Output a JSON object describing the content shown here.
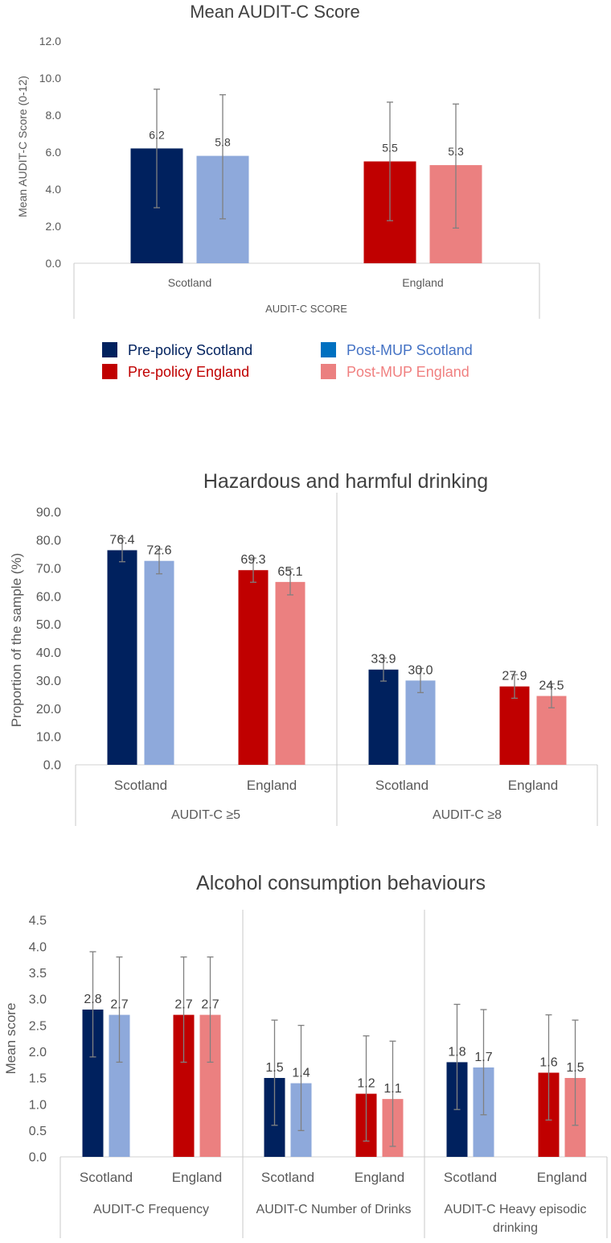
{
  "colors": {
    "pre_scotland": "#00215E",
    "post_scotland": "#8EA9DB",
    "pre_england": "#C00000",
    "post_england": "#EB8080",
    "legend_post_scotland_swatch": "#0070C0",
    "legend_post_scotland_text": "#4472C4",
    "legend_post_england_text": "#F08080",
    "error_bar": "#808080",
    "axis_text": "#595959",
    "title_text": "#404040"
  },
  "legend": {
    "pre_scotland": "Pre-policy Scotland",
    "post_scotland": "Post-MUP Scotland",
    "pre_england": "Pre-policy England",
    "post_england": "Post-MUP England"
  },
  "chart_data": [
    {
      "type": "bar",
      "title": "Mean AUDIT-C Score",
      "ylabel": "Mean AUDIT-C Score (0-12)",
      "ylim": [
        0,
        12
      ],
      "yticks": [
        "0.0",
        "2.0",
        "4.0",
        "6.0",
        "8.0",
        "10.0",
        "12.0"
      ],
      "groups": [
        {
          "label": "AUDIT-C SCORE",
          "countries": [
            {
              "label": "Scotland",
              "bars": [
                {
                  "series": "Pre-policy Scotland",
                  "value": 6.2,
                  "label": "6.2",
                  "err_low": 3.0,
                  "err_high": 9.4
                },
                {
                  "series": "Post-MUP Scotland",
                  "value": 5.8,
                  "label": "5.8",
                  "err_low": 2.4,
                  "err_high": 9.1
                }
              ]
            },
            {
              "label": "England",
              "bars": [
                {
                  "series": "Pre-policy England",
                  "value": 5.5,
                  "label": "5.5",
                  "err_low": 2.3,
                  "err_high": 8.7
                },
                {
                  "series": "Post-MUP England",
                  "value": 5.3,
                  "label": "5.3",
                  "err_low": 1.9,
                  "err_high": 8.6
                }
              ]
            }
          ]
        }
      ]
    },
    {
      "type": "bar",
      "title": "Hazardous and harmful drinking",
      "ylabel": "Proportion of the sample (%)",
      "ylim": [
        0,
        90
      ],
      "yticks": [
        "0.0",
        "10.0",
        "20.0",
        "30.0",
        "40.0",
        "50.0",
        "60.0",
        "70.0",
        "80.0",
        "90.0"
      ],
      "groups": [
        {
          "label": "AUDIT-C ≥5",
          "countries": [
            {
              "label": "Scotland",
              "bars": [
                {
                  "series": "Pre-policy Scotland",
                  "value": 76.4,
                  "label": "76.4",
                  "err_low": 72.3,
                  "err_high": 80.8
                },
                {
                  "series": "Post-MUP Scotland",
                  "value": 72.6,
                  "label": "72.6",
                  "err_low": 68.0,
                  "err_high": 76.8
                }
              ]
            },
            {
              "label": "England",
              "bars": [
                {
                  "series": "Pre-policy England",
                  "value": 69.3,
                  "label": "69.3",
                  "err_low": 65.0,
                  "err_high": 73.6
                },
                {
                  "series": "Post-MUP England",
                  "value": 65.1,
                  "label": "65.1",
                  "err_low": 60.5,
                  "err_high": 69.7
                }
              ]
            }
          ]
        },
        {
          "label": "AUDIT-C ≥8",
          "countries": [
            {
              "label": "Scotland",
              "bars": [
                {
                  "series": "Pre-policy Scotland",
                  "value": 33.9,
                  "label": "33.9",
                  "err_low": 29.8,
                  "err_high": 38.0
                },
                {
                  "series": "Post-MUP Scotland",
                  "value": 30.0,
                  "label": "30.0",
                  "err_low": 25.7,
                  "err_high": 34.3
                }
              ]
            },
            {
              "label": "England",
              "bars": [
                {
                  "series": "Pre-policy England",
                  "value": 27.9,
                  "label": "27.9",
                  "err_low": 23.7,
                  "err_high": 32.1
                },
                {
                  "series": "Post-MUP England",
                  "value": 24.5,
                  "label": "24.5",
                  "err_low": 20.3,
                  "err_high": 28.8
                }
              ]
            }
          ]
        }
      ]
    },
    {
      "type": "bar",
      "title": "Alcohol consumption behaviours",
      "ylabel": "Mean score",
      "ylim": [
        0,
        4.5
      ],
      "yticks": [
        "0.0",
        "0.5",
        "1.0",
        "1.5",
        "2.0",
        "2.5",
        "3.0",
        "3.5",
        "4.0",
        "4.5"
      ],
      "groups": [
        {
          "label": "AUDIT-C Frequency",
          "countries": [
            {
              "label": "Scotland",
              "bars": [
                {
                  "series": "Pre-policy Scotland",
                  "value": 2.8,
                  "label": "2.8",
                  "err_low": 1.9,
                  "err_high": 3.9
                },
                {
                  "series": "Post-MUP Scotland",
                  "value": 2.7,
                  "label": "2.7",
                  "err_low": 1.8,
                  "err_high": 3.8
                }
              ]
            },
            {
              "label": "England",
              "bars": [
                {
                  "series": "Pre-policy England",
                  "value": 2.7,
                  "label": "2.7",
                  "err_low": 1.8,
                  "err_high": 3.8
                },
                {
                  "series": "Post-MUP England",
                  "value": 2.7,
                  "label": "2.7",
                  "err_low": 1.8,
                  "err_high": 3.8
                }
              ]
            }
          ]
        },
        {
          "label": "AUDIT-C Number of Drinks",
          "countries": [
            {
              "label": "Scotland",
              "bars": [
                {
                  "series": "Pre-policy Scotland",
                  "value": 1.5,
                  "label": "1.5",
                  "err_low": 0.6,
                  "err_high": 2.6
                },
                {
                  "series": "Post-MUP Scotland",
                  "value": 1.4,
                  "label": "1.4",
                  "err_low": 0.5,
                  "err_high": 2.5
                }
              ]
            },
            {
              "label": "England",
              "bars": [
                {
                  "series": "Pre-policy England",
                  "value": 1.2,
                  "label": "1.2",
                  "err_low": 0.3,
                  "err_high": 2.3
                },
                {
                  "series": "Post-MUP England",
                  "value": 1.1,
                  "label": "1.1",
                  "err_low": 0.2,
                  "err_high": 2.2
                }
              ]
            }
          ]
        },
        {
          "label": "AUDIT-C Heavy episodic drinking",
          "label_lines": [
            "AUDIT-C Heavy episodic",
            "drinking"
          ],
          "countries": [
            {
              "label": "Scotland",
              "bars": [
                {
                  "series": "Pre-policy Scotland",
                  "value": 1.8,
                  "label": "1.8",
                  "err_low": 0.9,
                  "err_high": 2.9
                },
                {
                  "series": "Post-MUP Scotland",
                  "value": 1.7,
                  "label": "1.7",
                  "err_low": 0.8,
                  "err_high": 2.8
                }
              ]
            },
            {
              "label": "England",
              "bars": [
                {
                  "series": "Pre-policy England",
                  "value": 1.6,
                  "label": "1.6",
                  "err_low": 0.7,
                  "err_high": 2.7
                },
                {
                  "series": "Post-MUP England",
                  "value": 1.5,
                  "label": "1.5",
                  "err_low": 0.6,
                  "err_high": 2.6
                }
              ]
            }
          ]
        }
      ]
    }
  ]
}
